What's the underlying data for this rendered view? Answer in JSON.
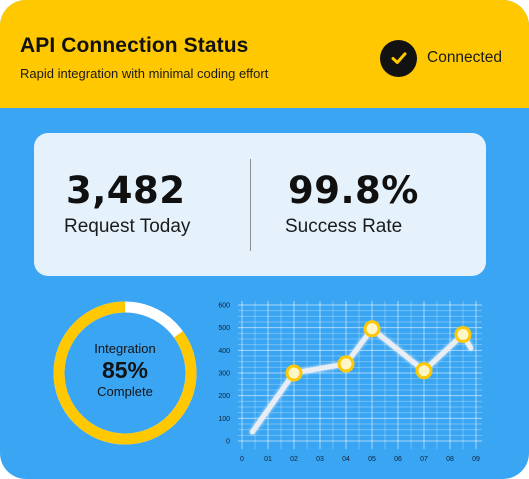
{
  "header": {
    "title": "API Connection Status",
    "subtitle": "Rapid integration with minimal coding effort",
    "status_icon": "check-circle-icon",
    "status_label": "Connected"
  },
  "stats": {
    "requests": {
      "value": "3,482",
      "label": "Request Today"
    },
    "success": {
      "value": "99.8%",
      "label": "Success Rate"
    }
  },
  "gauge": {
    "line1": "Integration",
    "percent_text": "85%",
    "line3": "Complete",
    "progress_fraction": 0.85
  },
  "colors": {
    "header_bg": "#ffc800",
    "body_bg": "#3aa6f3",
    "stats_bg": "#e6f2fb",
    "accent_yellow": "#ffc800",
    "ring_track": "#ffffff"
  },
  "chart_data": {
    "type": "line",
    "title": "",
    "xlabel": "",
    "ylabel": "",
    "xticks": [
      "0",
      "01",
      "02",
      "03",
      "04",
      "05",
      "06",
      "07",
      "08",
      "09"
    ],
    "yticks": [
      "0",
      "100",
      "200",
      "300",
      "400",
      "500",
      "600"
    ],
    "xlim": [
      0,
      9
    ],
    "ylim": [
      0,
      600
    ],
    "grid": true,
    "x": [
      0.4,
      2,
      4,
      5,
      7,
      8.5,
      8.8
    ],
    "y": [
      40,
      300,
      340,
      495,
      310,
      470,
      410
    ],
    "marked_points": [
      1,
      2,
      3,
      4,
      5
    ]
  }
}
